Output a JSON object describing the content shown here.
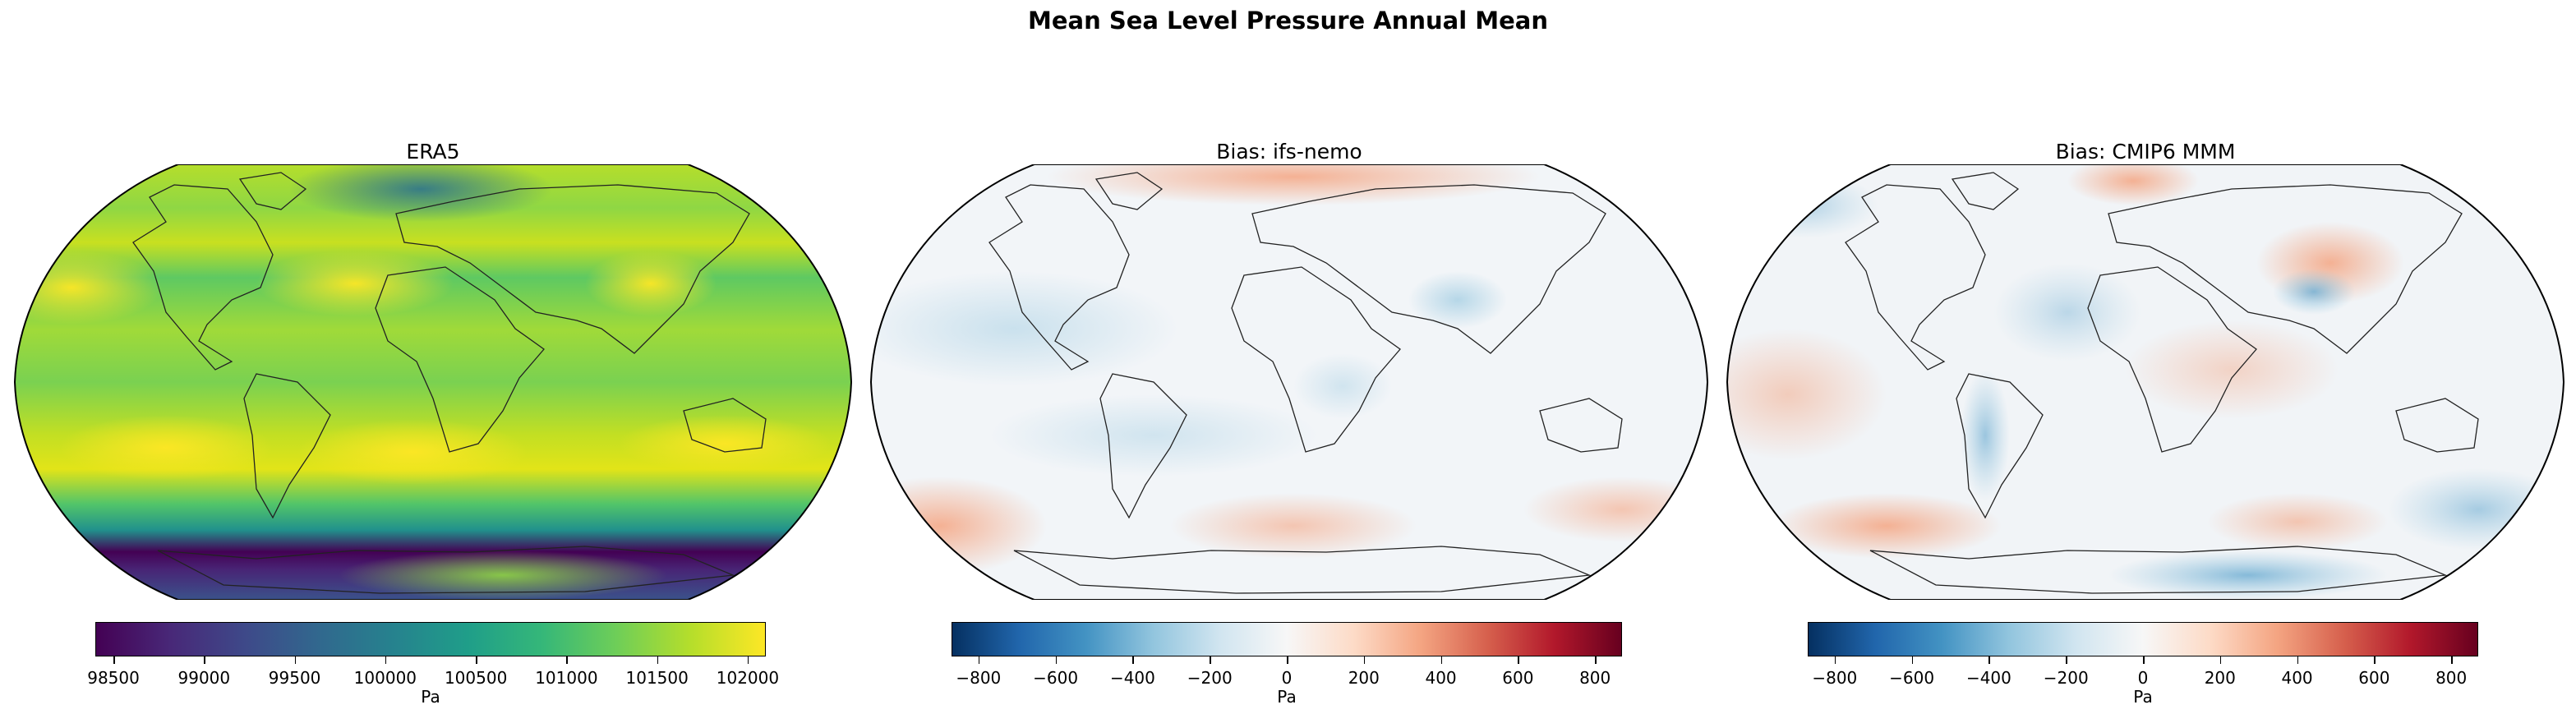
{
  "figure": {
    "title": "Mean Sea Level Pressure Annual Mean"
  },
  "panels": [
    {
      "title": "ERA5",
      "colormap": "viridis",
      "colors": [
        "#440154",
        "#3b528b",
        "#21918c",
        "#5ec962",
        "#fde725"
      ],
      "colorbar": {
        "label": "Pa",
        "min": 98400,
        "max": 102100,
        "ticks": [
          "98500",
          "99000",
          "99500",
          "100000",
          "100500",
          "101000",
          "101500",
          "102000"
        ],
        "tick_values": [
          98500,
          99000,
          99500,
          100000,
          100500,
          101000,
          101500,
          102000
        ]
      }
    },
    {
      "title": "Bias: ifs-nemo",
      "colormap": "RdBu_r",
      "colors": [
        "#053061",
        "#2166ac",
        "#92c5de",
        "#f7f7f7",
        "#f4a582",
        "#b2182b",
        "#67001f"
      ],
      "colorbar": {
        "label": "Pa",
        "min": -870,
        "max": 870,
        "ticks": [
          "−800",
          "−600",
          "−400",
          "−200",
          "0",
          "200",
          "400",
          "600",
          "800"
        ],
        "tick_values": [
          -800,
          -600,
          -400,
          -200,
          0,
          200,
          400,
          600,
          800
        ]
      }
    },
    {
      "title": "Bias: CMIP6 MMM",
      "colormap": "RdBu_r",
      "colors": [
        "#053061",
        "#2166ac",
        "#92c5de",
        "#f7f7f7",
        "#f4a582",
        "#b2182b",
        "#67001f"
      ],
      "colorbar": {
        "label": "Pa",
        "min": -870,
        "max": 870,
        "ticks": [
          "−800",
          "−600",
          "−400",
          "−200",
          "0",
          "200",
          "400",
          "600",
          "800"
        ],
        "tick_values": [
          -800,
          -600,
          -400,
          -200,
          0,
          200,
          400,
          600,
          800
        ]
      }
    }
  ]
}
